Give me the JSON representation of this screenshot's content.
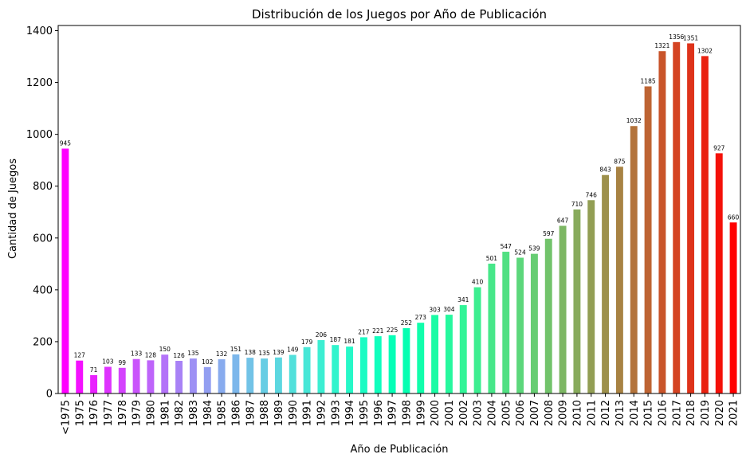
{
  "chart_data": {
    "type": "bar",
    "title": "Distribución de los Juegos por Año de Publicación",
    "xlabel": "Año de Publicación",
    "ylabel": "Cantidad de Juegos",
    "ylim": [
      0,
      1420
    ],
    "yticks": [
      0,
      200,
      400,
      600,
      800,
      1000,
      1200,
      1400
    ],
    "grid": false,
    "legend": "none",
    "colormap": "rainbow",
    "categories": [
      "<1975",
      "1975",
      "1976",
      "1977",
      "1978",
      "1979",
      "1980",
      "1981",
      "1982",
      "1983",
      "1984",
      "1985",
      "1986",
      "1987",
      "1988",
      "1989",
      "1990",
      "1991",
      "1992",
      "1993",
      "1994",
      "1995",
      "1996",
      "1997",
      "1998",
      "1999",
      "2000",
      "2001",
      "2002",
      "2003",
      "2004",
      "2005",
      "2006",
      "2007",
      "2008",
      "2009",
      "2010",
      "2011",
      "2012",
      "2013",
      "2014",
      "2015",
      "2016",
      "2017",
      "2018",
      "2019",
      "2020",
      "2021"
    ],
    "values": [
      945,
      127,
      71,
      103,
      99,
      133,
      128,
      150,
      126,
      135,
      102,
      132,
      151,
      138,
      135,
      139,
      149,
      179,
      206,
      187,
      181,
      217,
      221,
      225,
      252,
      273,
      303,
      304,
      341,
      410,
      501,
      547,
      524,
      539,
      597,
      647,
      710,
      746,
      843,
      875,
      1032,
      1185,
      1321,
      1356,
      1351,
      1302,
      927,
      660
    ]
  }
}
